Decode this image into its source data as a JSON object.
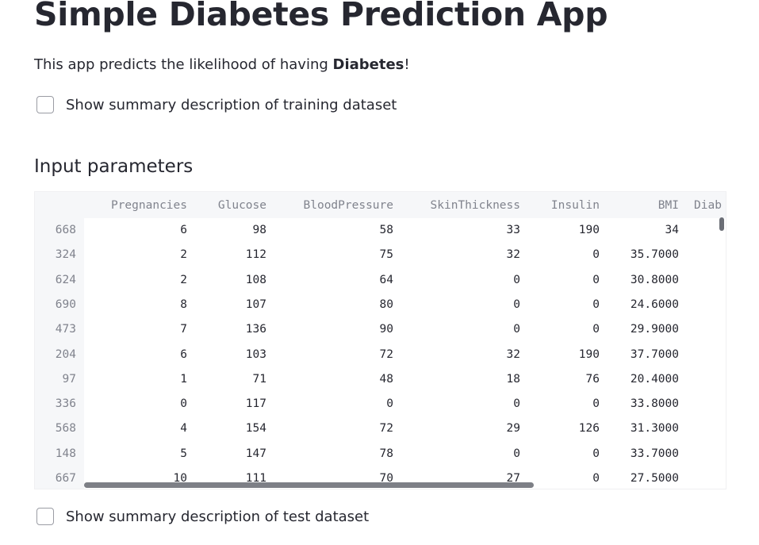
{
  "app": {
    "title": "Simple Diabetes Prediction App",
    "intro_prefix": "This app predicts the likelihood of having ",
    "intro_bold": "Diabetes",
    "intro_suffix": "!"
  },
  "checkboxes": {
    "train_summary_label": "Show summary description of training dataset",
    "test_summary_label": "Show summary description of test dataset"
  },
  "section": {
    "input_title": "Input parameters"
  },
  "table": {
    "columns": [
      "Pregnancies",
      "Glucose",
      "BloodPressure",
      "SkinThickness",
      "Insulin",
      "BMI",
      "Diab"
    ],
    "rows": [
      {
        "index": "668",
        "values": [
          "6",
          "98",
          "58",
          "33",
          "190",
          "34"
        ]
      },
      {
        "index": "324",
        "values": [
          "2",
          "112",
          "75",
          "32",
          "0",
          "35.7000"
        ]
      },
      {
        "index": "624",
        "values": [
          "2",
          "108",
          "64",
          "0",
          "0",
          "30.8000"
        ]
      },
      {
        "index": "690",
        "values": [
          "8",
          "107",
          "80",
          "0",
          "0",
          "24.6000"
        ]
      },
      {
        "index": "473",
        "values": [
          "7",
          "136",
          "90",
          "0",
          "0",
          "29.9000"
        ]
      },
      {
        "index": "204",
        "values": [
          "6",
          "103",
          "72",
          "32",
          "190",
          "37.7000"
        ]
      },
      {
        "index": "97",
        "values": [
          "1",
          "71",
          "48",
          "18",
          "76",
          "20.4000"
        ]
      },
      {
        "index": "336",
        "values": [
          "0",
          "117",
          "0",
          "0",
          "0",
          "33.8000"
        ]
      },
      {
        "index": "568",
        "values": [
          "4",
          "154",
          "72",
          "29",
          "126",
          "31.3000"
        ]
      },
      {
        "index": "148",
        "values": [
          "5",
          "147",
          "78",
          "0",
          "0",
          "33.7000"
        ]
      },
      {
        "index": "667",
        "values": [
          "10",
          "111",
          "70",
          "27",
          "0",
          "27.5000"
        ]
      }
    ]
  }
}
